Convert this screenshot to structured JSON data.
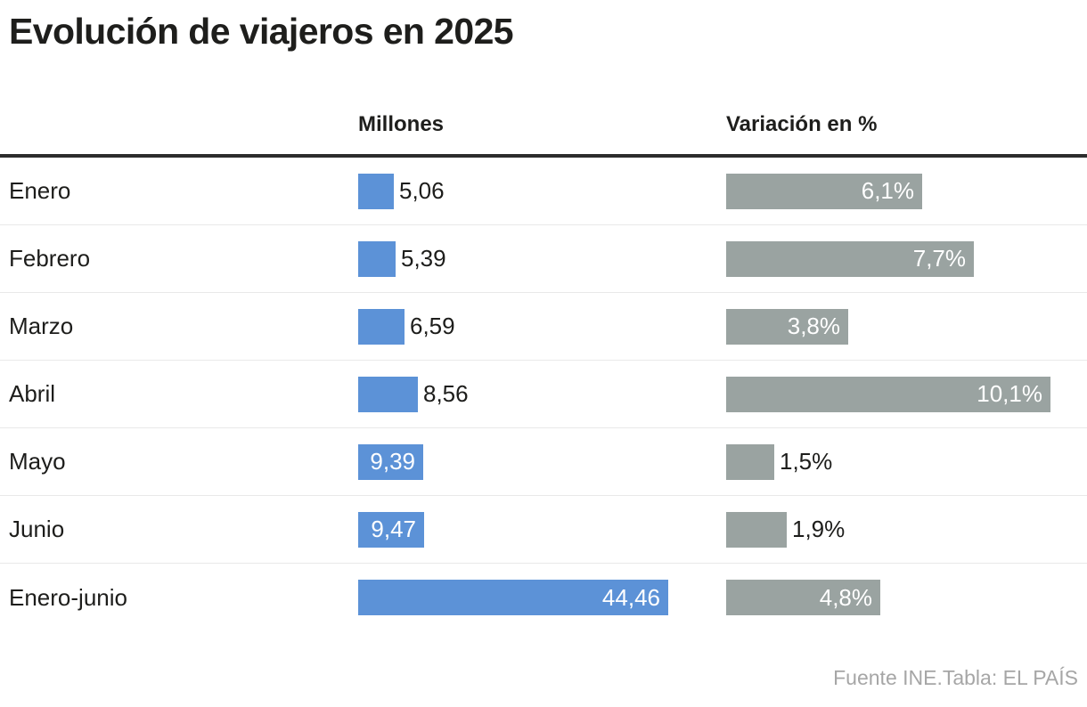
{
  "title": "Evolución de viajeros en 2025",
  "columns": {
    "millones": "Millones",
    "variacion": "Variación en %"
  },
  "footer": "Fuente INE.Tabla: EL PAÍS",
  "colors": {
    "bar_blue": "#5c92d7",
    "bar_gray": "#9aa3a1",
    "header_rule": "#2d2d2d",
    "row_divider": "#e9e9e9",
    "text_dark": "#1d1d1b",
    "text_inside_bar": "#ffffff",
    "footer_text": "#a6a6a6"
  },
  "chart_data": {
    "type": "bar",
    "title": "Evolución de viajeros en 2025",
    "categories": [
      "Enero",
      "Febrero",
      "Marzo",
      "Abril",
      "Mayo",
      "Junio",
      "Enero-junio"
    ],
    "series": [
      {
        "name": "Millones",
        "values": [
          5.06,
          5.39,
          6.59,
          8.56,
          9.39,
          9.47,
          44.46
        ]
      },
      {
        "name": "Variación en %",
        "values": [
          6.1,
          7.7,
          3.8,
          10.1,
          1.5,
          1.9,
          4.8
        ]
      }
    ],
    "orientation": "horizontal",
    "grid": false,
    "legend_position": "column-headers",
    "millones_axis_max": 44.46,
    "variacion_axis_max": 10.1,
    "source": "Fuente INE.Tabla: EL PAÍS"
  },
  "rows": [
    {
      "label": "Enero",
      "millones": {
        "value": 5.06,
        "display": "5,06",
        "inside": false
      },
      "variacion": {
        "value": 6.1,
        "display": "6,1%",
        "inside": true
      }
    },
    {
      "label": "Febrero",
      "millones": {
        "value": 5.39,
        "display": "5,39",
        "inside": false
      },
      "variacion": {
        "value": 7.7,
        "display": "7,7%",
        "inside": true
      }
    },
    {
      "label": "Marzo",
      "millones": {
        "value": 6.59,
        "display": "6,59",
        "inside": false
      },
      "variacion": {
        "value": 3.8,
        "display": "3,8%",
        "inside": true
      }
    },
    {
      "label": "Abril",
      "millones": {
        "value": 8.56,
        "display": "8,56",
        "inside": false
      },
      "variacion": {
        "value": 10.1,
        "display": "10,1%",
        "inside": true
      }
    },
    {
      "label": "Mayo",
      "millones": {
        "value": 9.39,
        "display": "9,39",
        "inside": true
      },
      "variacion": {
        "value": 1.5,
        "display": "1,5%",
        "inside": false
      }
    },
    {
      "label": "Junio",
      "millones": {
        "value": 9.47,
        "display": "9,47",
        "inside": true
      },
      "variacion": {
        "value": 1.9,
        "display": "1,9%",
        "inside": false
      }
    },
    {
      "label": "Enero-junio",
      "millones": {
        "value": 44.46,
        "display": "44,46",
        "inside": true
      },
      "variacion": {
        "value": 4.8,
        "display": "4,8%",
        "inside": true
      }
    }
  ]
}
